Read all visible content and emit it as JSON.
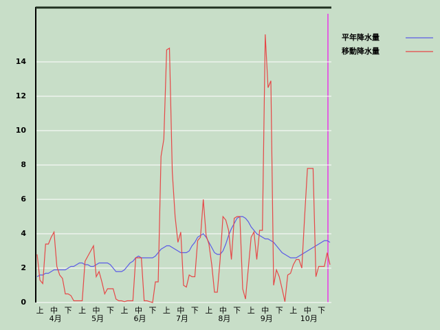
{
  "chart_data": {
    "type": "line",
    "categories": [
      null,
      "上",
      null,
      null,
      null,
      null,
      "中",
      null,
      null,
      null,
      null,
      "下",
      null,
      null,
      null,
      null,
      "上",
      null,
      null,
      null,
      null,
      "中",
      null,
      null,
      null,
      null,
      "下",
      null,
      null,
      null,
      null,
      "上",
      null,
      null,
      null,
      null,
      "中",
      null,
      null,
      null,
      null,
      "下",
      null,
      null,
      null,
      null,
      "上",
      null,
      null,
      null,
      null,
      "中",
      null,
      null,
      null,
      null,
      "下",
      null,
      null,
      null,
      null,
      "上",
      null,
      null,
      null,
      null,
      "中",
      null,
      null,
      null,
      null,
      "下",
      null,
      null,
      null,
      null,
      "上",
      null,
      null,
      null,
      null,
      "中",
      null,
      null,
      null,
      null,
      "下",
      null,
      null,
      null,
      null,
      "上",
      null,
      null,
      null,
      null,
      "中",
      null,
      null,
      null,
      null,
      "下",
      null,
      null,
      null
    ],
    "months": [
      "4月",
      "5月",
      "6月",
      "7月",
      "8月",
      "9月",
      "10月"
    ],
    "series": [
      {
        "name": "平年降水量",
        "color": "#5a5ae6",
        "values": [
          1.5,
          1.6,
          1.6,
          1.7,
          1.7,
          1.8,
          1.9,
          1.9,
          1.9,
          1.9,
          1.9,
          2.0,
          2.1,
          2.1,
          2.2,
          2.3,
          2.3,
          2.2,
          2.2,
          2.1,
          2.1,
          2.2,
          2.3,
          2.3,
          2.3,
          2.3,
          2.2,
          2.0,
          1.8,
          1.8,
          1.8,
          1.9,
          2.1,
          2.3,
          2.4,
          2.6,
          2.7,
          2.6,
          2.6,
          2.6,
          2.6,
          2.6,
          2.7,
          2.9,
          3.1,
          3.2,
          3.3,
          3.3,
          3.2,
          3.1,
          3.0,
          2.9,
          2.9,
          2.9,
          3.0,
          3.3,
          3.5,
          3.8,
          3.9,
          4.0,
          3.8,
          3.5,
          3.2,
          2.9,
          2.8,
          2.8,
          3.0,
          3.4,
          3.9,
          4.3,
          4.6,
          4.9,
          5.0,
          5.0,
          4.9,
          4.7,
          4.4,
          4.2,
          4.0,
          3.9,
          3.8,
          3.7,
          3.7,
          3.6,
          3.5,
          3.3,
          3.1,
          2.9,
          2.8,
          2.7,
          2.6,
          2.6,
          2.6,
          2.7,
          2.8,
          2.9,
          3.0,
          3.1,
          3.2,
          3.3,
          3.4,
          3.5,
          3.6,
          3.6,
          3.5
        ]
      },
      {
        "name": "移動降水量",
        "color": "#e64646",
        "values": [
          2.8,
          1.3,
          1.1,
          3.4,
          3.4,
          3.8,
          4.1,
          2.1,
          1.6,
          1.4,
          0.5,
          0.5,
          0.4,
          0.1,
          0.1,
          0.1,
          0.1,
          2.4,
          2.7,
          3.0,
          3.3,
          1.5,
          1.8,
          1.2,
          0.5,
          0.8,
          0.8,
          0.8,
          0.2,
          0.1,
          0.1,
          0.05,
          0.1,
          0.1,
          0.1,
          2.6,
          2.6,
          2.6,
          0.1,
          0.1,
          0.05,
          0.0,
          1.2,
          1.2,
          8.5,
          9.5,
          14.7,
          14.8,
          7.6,
          5.0,
          3.5,
          4.1,
          1.0,
          0.9,
          1.6,
          1.5,
          1.5,
          3.6,
          3.8,
          6.0,
          3.9,
          3.4,
          2.2,
          0.6,
          0.6,
          2.5,
          5.0,
          4.8,
          4.2,
          2.5,
          4.9,
          5.0,
          5.0,
          0.8,
          0.2,
          2.0,
          3.8,
          4.1,
          2.5,
          4.2,
          4.2,
          15.6,
          12.5,
          12.9,
          1.0,
          1.9,
          1.5,
          0.8,
          0.05,
          1.6,
          1.7,
          2.2,
          2.5,
          2.5,
          2.0,
          5.0,
          7.8,
          7.8,
          7.8,
          1.5,
          2.1,
          2.1,
          2.1,
          2.9,
          2.2
        ]
      }
    ],
    "ylim": [
      0,
      17.2
    ],
    "yticks": [
      0,
      2,
      4,
      6,
      8,
      10,
      12,
      14
    ],
    "grid": true,
    "legend": "right"
  }
}
